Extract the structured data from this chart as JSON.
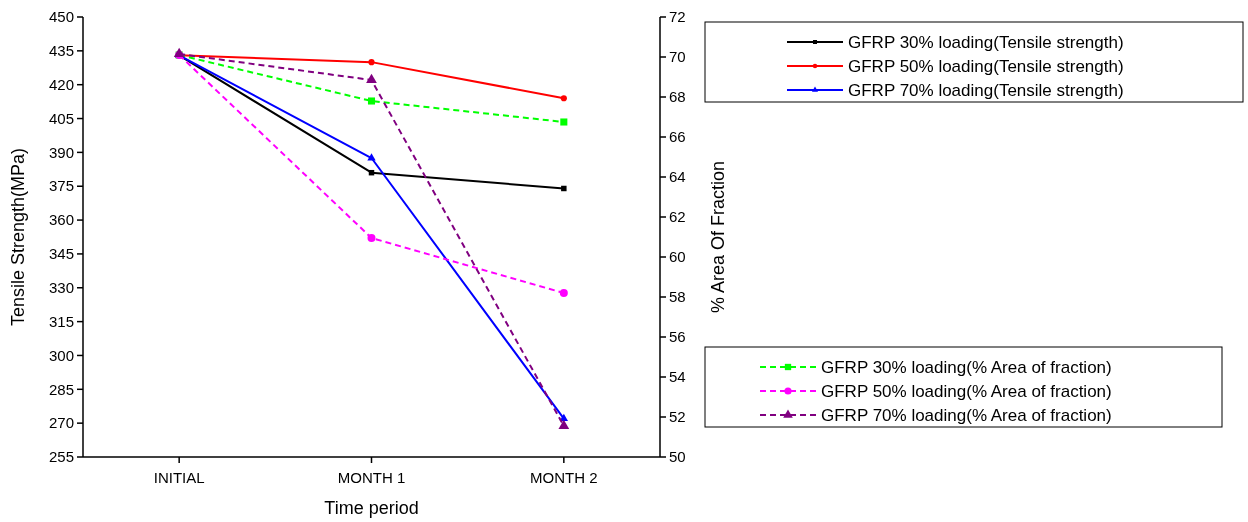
{
  "chart_data": {
    "type": "line",
    "xlabel": "Time period",
    "ylabel": "Tensile Strength(MPa)",
    "y2label": "% Area Of Fraction",
    "categories": [
      "INITIAL",
      "MONTH  1",
      "MONTH 2"
    ],
    "ylim": [
      255,
      450
    ],
    "yticks": [
      255,
      270,
      285,
      300,
      315,
      330,
      345,
      360,
      375,
      390,
      405,
      420,
      435,
      450
    ],
    "y2lim": [
      50,
      72
    ],
    "y2ticks": [
      50,
      52,
      54,
      56,
      58,
      60,
      62,
      64,
      66,
      68,
      70,
      72
    ],
    "legend": "right",
    "series": [
      {
        "name": "GFRP 30% loading(Tensile strength)",
        "color": "#000000",
        "values": [
          433,
          381,
          374
        ],
        "marker": "square",
        "line_style": "solid"
      },
      {
        "name": "GFRP 50% loading(Tensile strength)",
        "color": "#ff0000",
        "values": [
          433,
          430,
          414
        ],
        "marker": "circle",
        "line_style": "solid"
      },
      {
        "name": "GFRP 70% loading(Tensile strength)",
        "color": "#0000ff",
        "values": [
          433,
          387.5,
          272
        ],
        "marker": "triangle",
        "line_style": "solid"
      },
      {
        "name": "GFRP 30% loading(% Area of fraction)",
        "color": "#00ff00",
        "values": [
          70.1,
          67.8,
          66.75
        ],
        "marker": "square",
        "line_style": "dashed",
        "axis": "y2"
      },
      {
        "name": "GFRP 50% loading(% Area of fraction)",
        "color": "#ff00ff",
        "values": [
          70.1,
          60.95,
          58.2
        ],
        "marker": "circle",
        "line_style": "dashed",
        "axis": "y2"
      },
      {
        "name": "GFRP 70% loading(% Area of fraction)",
        "color": "#800080",
        "values": [
          70.15,
          68.85,
          51.55
        ],
        "marker": "triangle",
        "line_style": "dashed",
        "axis": "y2"
      }
    ]
  }
}
